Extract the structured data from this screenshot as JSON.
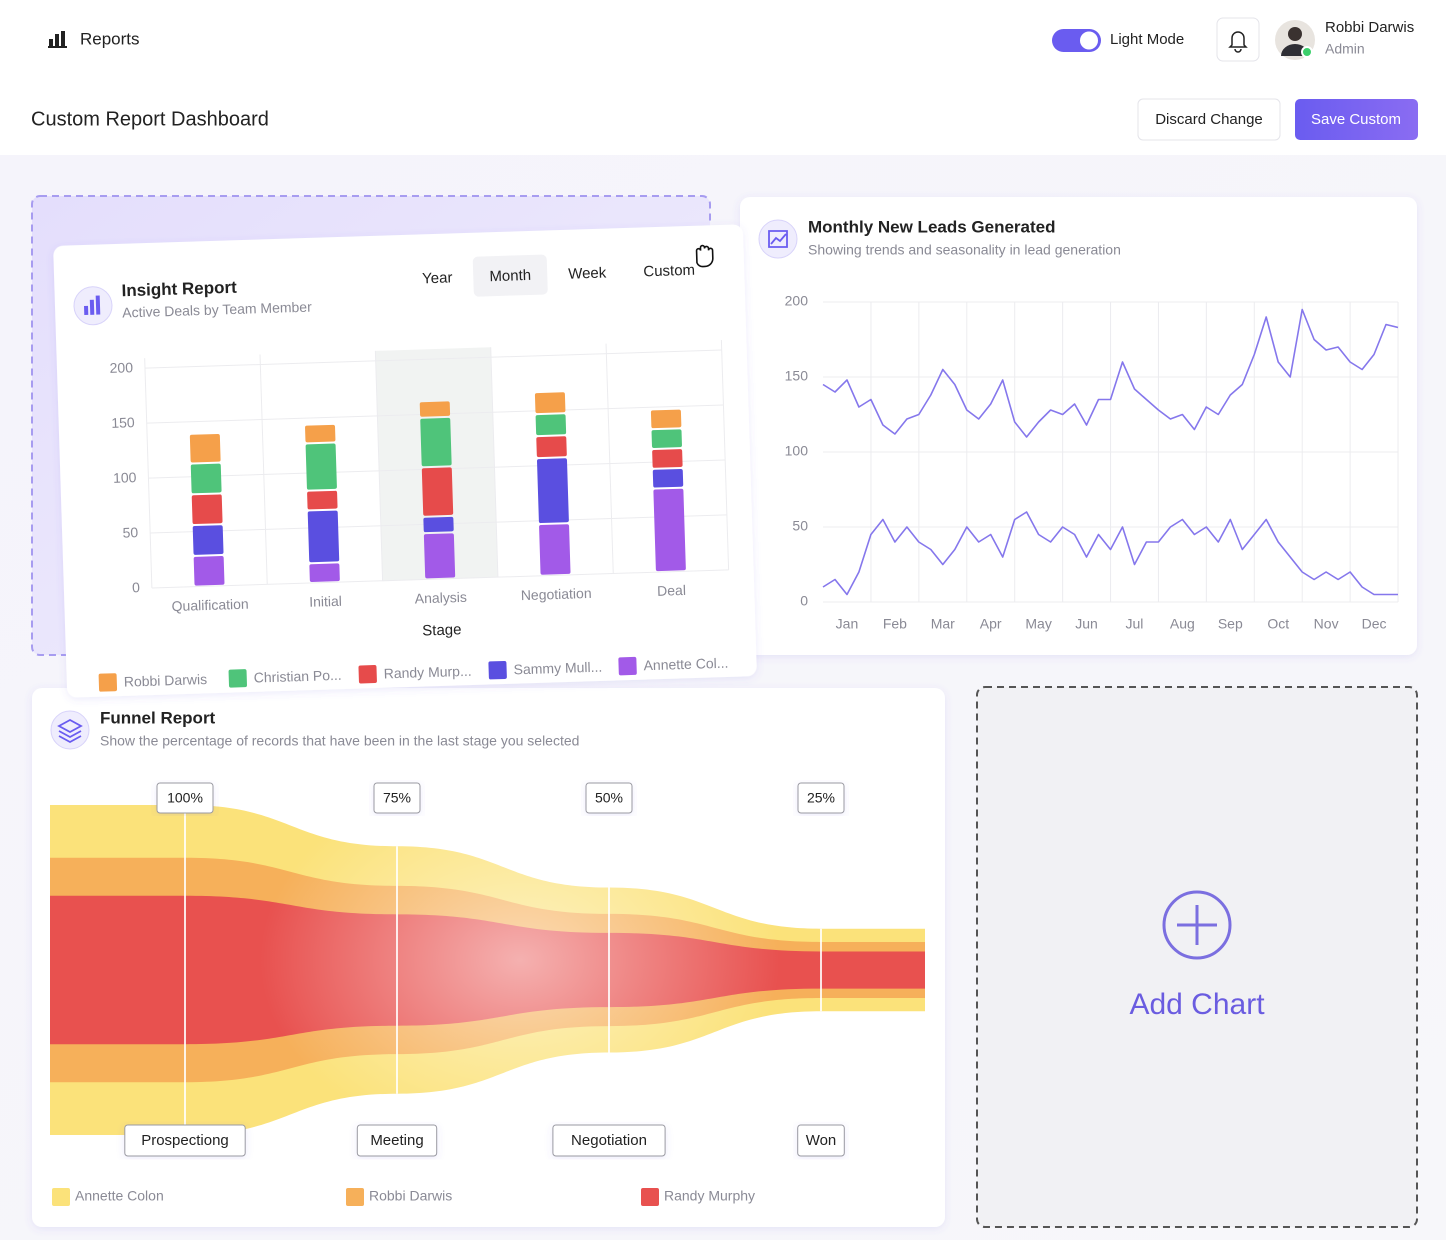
{
  "header": {
    "title": "Reports",
    "mode_toggle": "Light Mode",
    "user_name": "Robbi Darwis",
    "user_role": "Admin"
  },
  "toolbar": {
    "title": "Custom Report Dashboard",
    "discard": "Discard Change",
    "save": "Save Custom"
  },
  "chart_data": [
    {
      "type": "bar",
      "stacked": true,
      "title": "Insight Report",
      "subtitle": "Active Deals by Team Member",
      "periods": [
        "Year",
        "Month",
        "Week",
        "Custom"
      ],
      "active_period": 1,
      "categories": [
        "Qualification",
        "Initial",
        "Analysis",
        "Negotiation",
        "Deal"
      ],
      "highlight_category": 2,
      "x_label": "Stage",
      "ylim": [
        0,
        200
      ],
      "yticks": [
        0,
        50,
        100,
        150,
        200
      ],
      "grid": true,
      "series": [
        {
          "name": "Robbi Darwis",
          "color": "#f5a04a",
          "values": [
            27,
            17,
            15,
            20,
            18
          ]
        },
        {
          "name": "Christian Po...",
          "color": "#4fc47a",
          "values": [
            28,
            43,
            45,
            20,
            18
          ]
        },
        {
          "name": "Randy Murp...",
          "color": "#e64b4b",
          "values": [
            28,
            18,
            45,
            20,
            18
          ]
        },
        {
          "name": "Sammy Mull...",
          "color": "#5a4fe0",
          "values": [
            28,
            48,
            15,
            60,
            18
          ]
        },
        {
          "name": "Annette Col...",
          "color": "#a25ae8",
          "values": [
            28,
            18,
            42,
            47,
            76
          ]
        }
      ]
    },
    {
      "type": "line",
      "title": "Monthly New Leads Generated",
      "subtitle": "Showing trends and seasonality in lead generation",
      "x": [
        0,
        0.25,
        0.5,
        0.75,
        1,
        1.25,
        1.5,
        1.75,
        2,
        2.25,
        2.5,
        2.75,
        3,
        3.25,
        3.5,
        3.75,
        4,
        4.25,
        4.5,
        4.75,
        5,
        5.25,
        5.5,
        5.75,
        6,
        6.25,
        6.5,
        6.75,
        7,
        7.25,
        7.5,
        7.75,
        8,
        8.25,
        8.5,
        8.75,
        9,
        9.25,
        9.5,
        9.75,
        10,
        10.25,
        10.5,
        10.75,
        11,
        11.25,
        11.5,
        11.75,
        12
      ],
      "xlim": [
        0,
        12
      ],
      "xticks": [
        {
          "value": 0.5,
          "label": "Jan"
        },
        {
          "value": 1.5,
          "label": "Feb"
        },
        {
          "value": 2.5,
          "label": "Mar"
        },
        {
          "value": 3.5,
          "label": "Apr"
        },
        {
          "value": 4.5,
          "label": "May"
        },
        {
          "value": 5.5,
          "label": "Jun"
        },
        {
          "value": 6.5,
          "label": "Jul"
        },
        {
          "value": 7.5,
          "label": "Aug"
        },
        {
          "value": 8.5,
          "label": "Sep"
        },
        {
          "value": 9.5,
          "label": "Oct"
        },
        {
          "value": 10.5,
          "label": "Nov"
        },
        {
          "value": 11.5,
          "label": "Dec"
        }
      ],
      "ylim": [
        0,
        200
      ],
      "yticks": [
        0,
        50,
        100,
        150,
        200
      ],
      "grid": true,
      "series": [
        {
          "color": "#8577ec",
          "values": [
            145,
            140,
            148,
            130,
            135,
            118,
            112,
            122,
            125,
            138,
            155,
            145,
            128,
            122,
            132,
            148,
            120,
            110,
            120,
            128,
            125,
            132,
            118,
            135,
            135,
            160,
            142,
            135,
            128,
            122,
            125,
            115,
            130,
            125,
            138,
            145,
            165,
            190,
            160,
            150,
            195,
            175,
            168,
            170,
            160,
            155,
            165,
            185,
            183
          ]
        },
        {
          "color": "#8577ec",
          "values": [
            10,
            15,
            5,
            20,
            45,
            55,
            40,
            50,
            40,
            35,
            25,
            35,
            50,
            40,
            45,
            30,
            55,
            60,
            45,
            40,
            50,
            45,
            30,
            45,
            35,
            50,
            25,
            40,
            40,
            50,
            55,
            45,
            50,
            40,
            55,
            35,
            45,
            55,
            40,
            30,
            20,
            15,
            20,
            15,
            20,
            10,
            5,
            5,
            5
          ]
        }
      ]
    },
    {
      "type": "funnel",
      "title": "Funnel Report",
      "subtitle": "Show the percentage of records that have been in the last stage you selected",
      "categories": [
        "Prospectiong",
        "Meeting",
        "Negotiation",
        "Won"
      ],
      "values": [
        100,
        75,
        50,
        25
      ],
      "value_labels": [
        "100%",
        "75%",
        "50%",
        "25%"
      ],
      "series": [
        {
          "name": "Annette Colon",
          "color": "#fbe27a"
        },
        {
          "name": "Robbi Darwis",
          "color": "#f6b05a"
        },
        {
          "name": "Randy Murphy",
          "color": "#e8514f"
        }
      ]
    }
  ],
  "add_chart": "Add Chart"
}
